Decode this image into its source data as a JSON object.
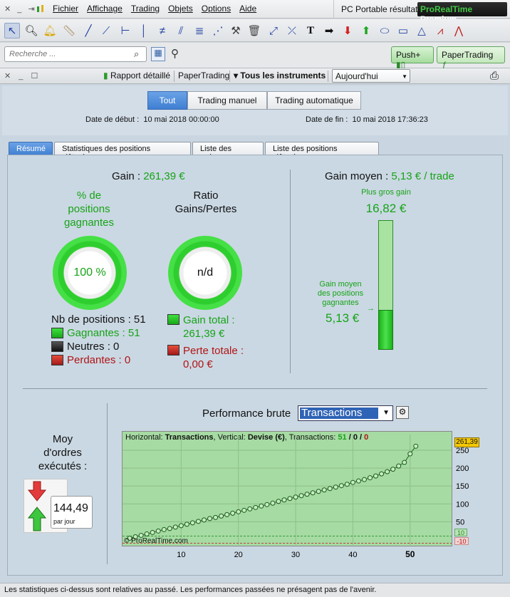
{
  "menubar": {
    "menus": [
      "Fichier",
      "Affichage",
      "Trading",
      "Objets",
      "Options",
      "Aide"
    ],
    "account": "PC Portable résultat",
    "brand_a": "ProRealTime",
    "brand_b": "Premium"
  },
  "search": {
    "placeholder": "Recherche ..."
  },
  "buttons": {
    "push": "Push+",
    "papertrading": "PaperTrading"
  },
  "window": {
    "report": "Rapport détaillé",
    "account": "PaperTrading",
    "instruments": "Tous les instruments",
    "period": "Aujourd'hui"
  },
  "filters": [
    "Tout",
    "Trading manuel",
    "Trading automatique"
  ],
  "dates": {
    "start_label": "Date de début :",
    "start_value": "10 mai 2018 00:00:00",
    "end_label": "Date de fin :",
    "end_value": "10 mai 2018 17:36:23"
  },
  "tabs": [
    "Résumé",
    "Statistiques des positions clôturées",
    "Liste des ordres",
    "Liste des positions clôturées"
  ],
  "summary": {
    "gain_label": "Gain : ",
    "gain_value": "261,39 €",
    "win_pct_title_1": "% de",
    "win_pct_title_2": "positions",
    "win_pct_title_3": "gagnantes",
    "win_pct_value": "100 %",
    "ratio_title_1": "Ratio",
    "ratio_title_2": "Gains/Pertes",
    "ratio_value": "n/d",
    "nb_positions": "Nb de positions : 51",
    "winners": "Gagnantes : 51",
    "neutral": "Neutres : 0",
    "losers": "Perdantes : 0",
    "gain_total_1": "Gain total :",
    "gain_total_2": "261,39 €",
    "loss_total_1": "Perte totale :",
    "loss_total_2": "0,00 €"
  },
  "avg": {
    "title": "Gain moyen : ",
    "title_value": "5,13 € / trade",
    "best_label": "Plus gros gain",
    "best_value": "16,82 €",
    "avg_label_1": "Gain moyen",
    "avg_label_2": "des positions",
    "avg_label_3": "gagnantes",
    "avg_value": "5,13 €",
    "fill_fraction": 0.305
  },
  "orders": {
    "title_1": "Moy",
    "title_2": "d'ordres",
    "title_3": "exécutés :",
    "value": "144,49",
    "unit": "par jour"
  },
  "performance": {
    "title": "Performance brute",
    "select": "Transactions",
    "info_h": "Horizontal:",
    "info_h_v": "Transactions",
    "info_v": ", Vertical:",
    "info_v_v": "Devise (€)",
    "info_t": ", Transactions:",
    "info_t_1": "51",
    "info_slash1": " / ",
    "info_t_2": "0",
    "info_slash2": " / ",
    "info_t_3": "0",
    "watermark": "© ProRealTime.com",
    "last_value": "261,39",
    "upper": "10",
    "lower": "-10"
  },
  "chart_data": {
    "type": "line",
    "xlabel": "",
    "ylabel": "",
    "x_ticks": [
      10,
      20,
      30,
      40,
      50
    ],
    "y_ticks": [
      50,
      100,
      150,
      200,
      250
    ],
    "ylim": [
      -15,
      270
    ],
    "xlim": [
      0,
      57
    ],
    "x": [
      1,
      2,
      3,
      4,
      5,
      6,
      7,
      8,
      9,
      10,
      11,
      12,
      13,
      14,
      15,
      16,
      17,
      18,
      19,
      20,
      21,
      22,
      23,
      24,
      25,
      26,
      27,
      28,
      29,
      30,
      31,
      32,
      33,
      34,
      35,
      36,
      37,
      38,
      39,
      40,
      41,
      42,
      43,
      44,
      45,
      46,
      47,
      48,
      49,
      50,
      51
    ],
    "values": [
      4,
      8,
      12,
      16,
      20,
      24,
      28,
      31,
      35,
      39,
      43,
      47,
      51,
      55,
      59,
      62,
      66,
      70,
      74,
      78,
      82,
      86,
      90,
      94,
      98,
      102,
      107,
      111,
      115,
      119,
      123,
      127,
      131,
      135,
      139,
      143,
      147,
      151,
      155,
      160,
      164,
      168,
      173,
      178,
      184,
      190,
      197,
      206,
      216,
      240,
      261.39
    ]
  },
  "footer": "Les statistiques ci-dessus sont relatives au passé. Les performances passées ne présagent pas de l'avenir.",
  "colors": {
    "accent": "#3f7fd2",
    "green": "#17a317",
    "red": "#b01515",
    "chart_bg": "#a6dba3",
    "brand_green": "#41c943"
  }
}
